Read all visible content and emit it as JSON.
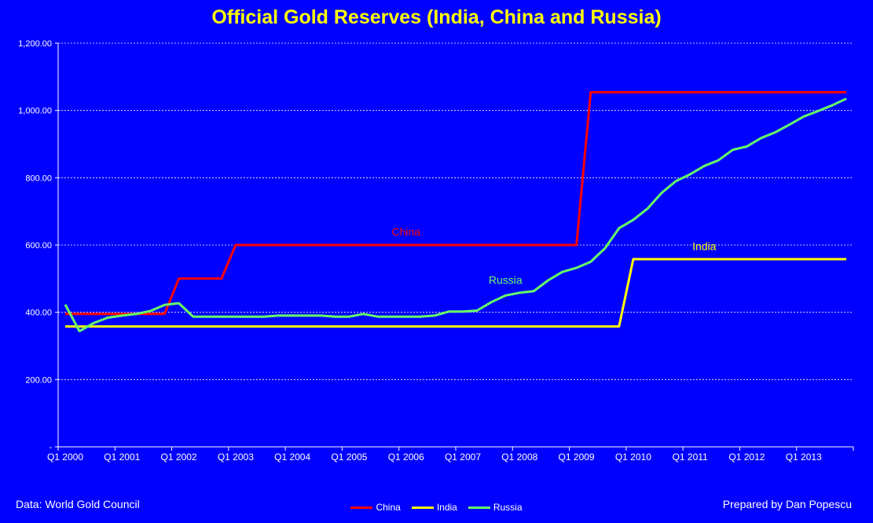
{
  "title": "Official Gold Reserves (India, China and Russia)",
  "source_note": "Data: World Gold Council",
  "credit_note": "Prepared by Dan Popescu",
  "colors": {
    "background": "#0000FF",
    "title": "#FFFF00",
    "axis_text": "#FFFFFF"
  },
  "chart_data": {
    "type": "line",
    "xlabel": "",
    "ylabel": "",
    "ylim": [
      0,
      1200
    ],
    "grid": true,
    "legend_position": "bottom",
    "y_ticks": [
      {
        "value": 0,
        "label": "-"
      },
      {
        "value": 200,
        "label": "200.00"
      },
      {
        "value": 400,
        "label": "400.00"
      },
      {
        "value": 600,
        "label": "600.00"
      },
      {
        "value": 800,
        "label": "800.00"
      },
      {
        "value": 1000,
        "label": "1,000.00"
      },
      {
        "value": 1200,
        "label": "1,200.00"
      }
    ],
    "categories": [
      "Q1 2000",
      "Q2 2000",
      "Q3 2000",
      "Q4 2000",
      "Q1 2001",
      "Q2 2001",
      "Q3 2001",
      "Q4 2001",
      "Q1 2002",
      "Q2 2002",
      "Q3 2002",
      "Q4 2002",
      "Q1 2003",
      "Q2 2003",
      "Q3 2003",
      "Q4 2003",
      "Q1 2004",
      "Q2 2004",
      "Q3 2004",
      "Q4 2004",
      "Q1 2005",
      "Q2 2005",
      "Q3 2005",
      "Q4 2005",
      "Q1 2006",
      "Q2 2006",
      "Q3 2006",
      "Q4 2006",
      "Q1 2007",
      "Q2 2007",
      "Q3 2007",
      "Q4 2007",
      "Q1 2008",
      "Q2 2008",
      "Q3 2008",
      "Q4 2008",
      "Q1 2009",
      "Q2 2009",
      "Q3 2009",
      "Q4 2009",
      "Q1 2010",
      "Q2 2010",
      "Q3 2010",
      "Q4 2010",
      "Q1 2011",
      "Q2 2011",
      "Q3 2011",
      "Q4 2011",
      "Q1 2012",
      "Q2 2012",
      "Q3 2012",
      "Q4 2012",
      "Q1 2013",
      "Q2 2013",
      "Q3 2013",
      "Q4 2013"
    ],
    "x_tick_labels": [
      "Q1 2000",
      "Q1 2001",
      "Q1 2002",
      "Q1 2003",
      "Q1 2004",
      "Q1 2005",
      "Q1 2006",
      "Q1 2007",
      "Q1 2008",
      "Q1 2009",
      "Q1 2010",
      "Q1 2011",
      "Q1 2012",
      "Q1 2013"
    ],
    "series": [
      {
        "name": "China",
        "color": "#FF0000",
        "annotation": "China",
        "annotation_index": 24,
        "annotation_value": 628,
        "values": [
          395,
          395,
          395,
          395,
          395,
          395,
          395,
          395,
          500,
          500,
          500,
          500,
          600,
          600,
          600,
          600,
          600,
          600,
          600,
          600,
          600,
          600,
          600,
          600,
          600,
          600,
          600,
          600,
          600,
          600,
          600,
          600,
          600,
          600,
          600,
          600,
          600,
          1054,
          1054,
          1054,
          1054,
          1054,
          1054,
          1054,
          1054,
          1054,
          1054,
          1054,
          1054,
          1054,
          1054,
          1054,
          1054,
          1054,
          1054,
          1054
        ]
      },
      {
        "name": "India",
        "color": "#FFFF00",
        "annotation": "India",
        "annotation_index": 45,
        "annotation_value": 585,
        "values": [
          358,
          358,
          358,
          358,
          358,
          358,
          358,
          358,
          358,
          358,
          358,
          358,
          358,
          358,
          358,
          358,
          358,
          358,
          358,
          358,
          358,
          358,
          358,
          358,
          358,
          358,
          358,
          358,
          358,
          358,
          358,
          358,
          358,
          358,
          358,
          358,
          358,
          358,
          358,
          358,
          558,
          558,
          558,
          558,
          558,
          558,
          558,
          558,
          558,
          558,
          558,
          558,
          558,
          558,
          558,
          558
        ]
      },
      {
        "name": "Russia",
        "color": "#66FF66",
        "annotation": "Russia",
        "annotation_index": 31,
        "annotation_value": 485,
        "values": [
          423,
          344,
          368,
          384,
          390,
          395,
          404,
          422,
          427,
          387,
          387,
          387,
          387,
          387,
          387,
          390,
          390,
          390,
          390,
          387,
          387,
          395,
          387,
          387,
          387,
          387,
          390,
          402,
          402,
          405,
          430,
          450,
          458,
          463,
          495,
          520,
          532,
          550,
          590,
          650,
          675,
          708,
          755,
          790,
          810,
          835,
          852,
          883,
          893,
          918,
          935,
          958,
          982,
          998,
          1015,
          1035
        ]
      }
    ]
  }
}
